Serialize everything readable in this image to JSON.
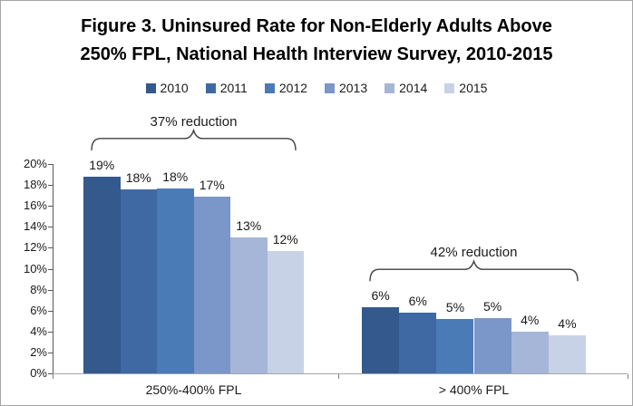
{
  "figure": {
    "title_line1": "Figure 3. Uninsured Rate for Non-Elderly Adults Above",
    "title_line2": "250% FPL, National Health Interview Survey, 2010-2015"
  },
  "chart_data": {
    "type": "bar",
    "title": "Figure 3. Uninsured Rate for Non-Elderly Adults Above 250% FPL, National Health Interview Survey, 2010-2015",
    "categories": [
      "250%-400% FPL",
      "> 400% FPL"
    ],
    "series": [
      {
        "name": "2010",
        "color": "#34598C",
        "values": [
          18.8,
          6.3
        ],
        "labels": [
          "19%",
          "6%"
        ]
      },
      {
        "name": "2011",
        "color": "#3F69A2",
        "values": [
          17.6,
          5.8
        ],
        "labels": [
          "18%",
          "6%"
        ]
      },
      {
        "name": "2012",
        "color": "#4A7BB7",
        "values": [
          17.7,
          5.2
        ],
        "labels": [
          "18%",
          "5%"
        ]
      },
      {
        "name": "2013",
        "color": "#7B96C8",
        "values": [
          16.9,
          5.3
        ],
        "labels": [
          "17%",
          "5%"
        ]
      },
      {
        "name": "2014",
        "color": "#A6B6D8",
        "values": [
          13.0,
          4.0
        ],
        "labels": [
          "13%",
          "4%"
        ]
      },
      {
        "name": "2015",
        "color": "#C8D2E6",
        "values": [
          11.7,
          3.6
        ],
        "labels": [
          "12%",
          "4%"
        ]
      }
    ],
    "xlabel": "",
    "ylabel": "",
    "ylim": [
      0,
      20
    ],
    "ytick_step": 2,
    "ytick_labels": [
      "0%",
      "2%",
      "4%",
      "6%",
      "8%",
      "10%",
      "12%",
      "14%",
      "16%",
      "18%",
      "20%"
    ],
    "grid": false,
    "legend_position": "top",
    "annotations": [
      {
        "text": "37% reduction",
        "category_index": 0
      },
      {
        "text": "42% reduction",
        "category_index": 1
      }
    ],
    "axis_colors": {
      "y_axis": "#595959",
      "x_axis": "#a6a6a6",
      "ticks": "#808080"
    },
    "annotation_line_color": "#404040"
  }
}
